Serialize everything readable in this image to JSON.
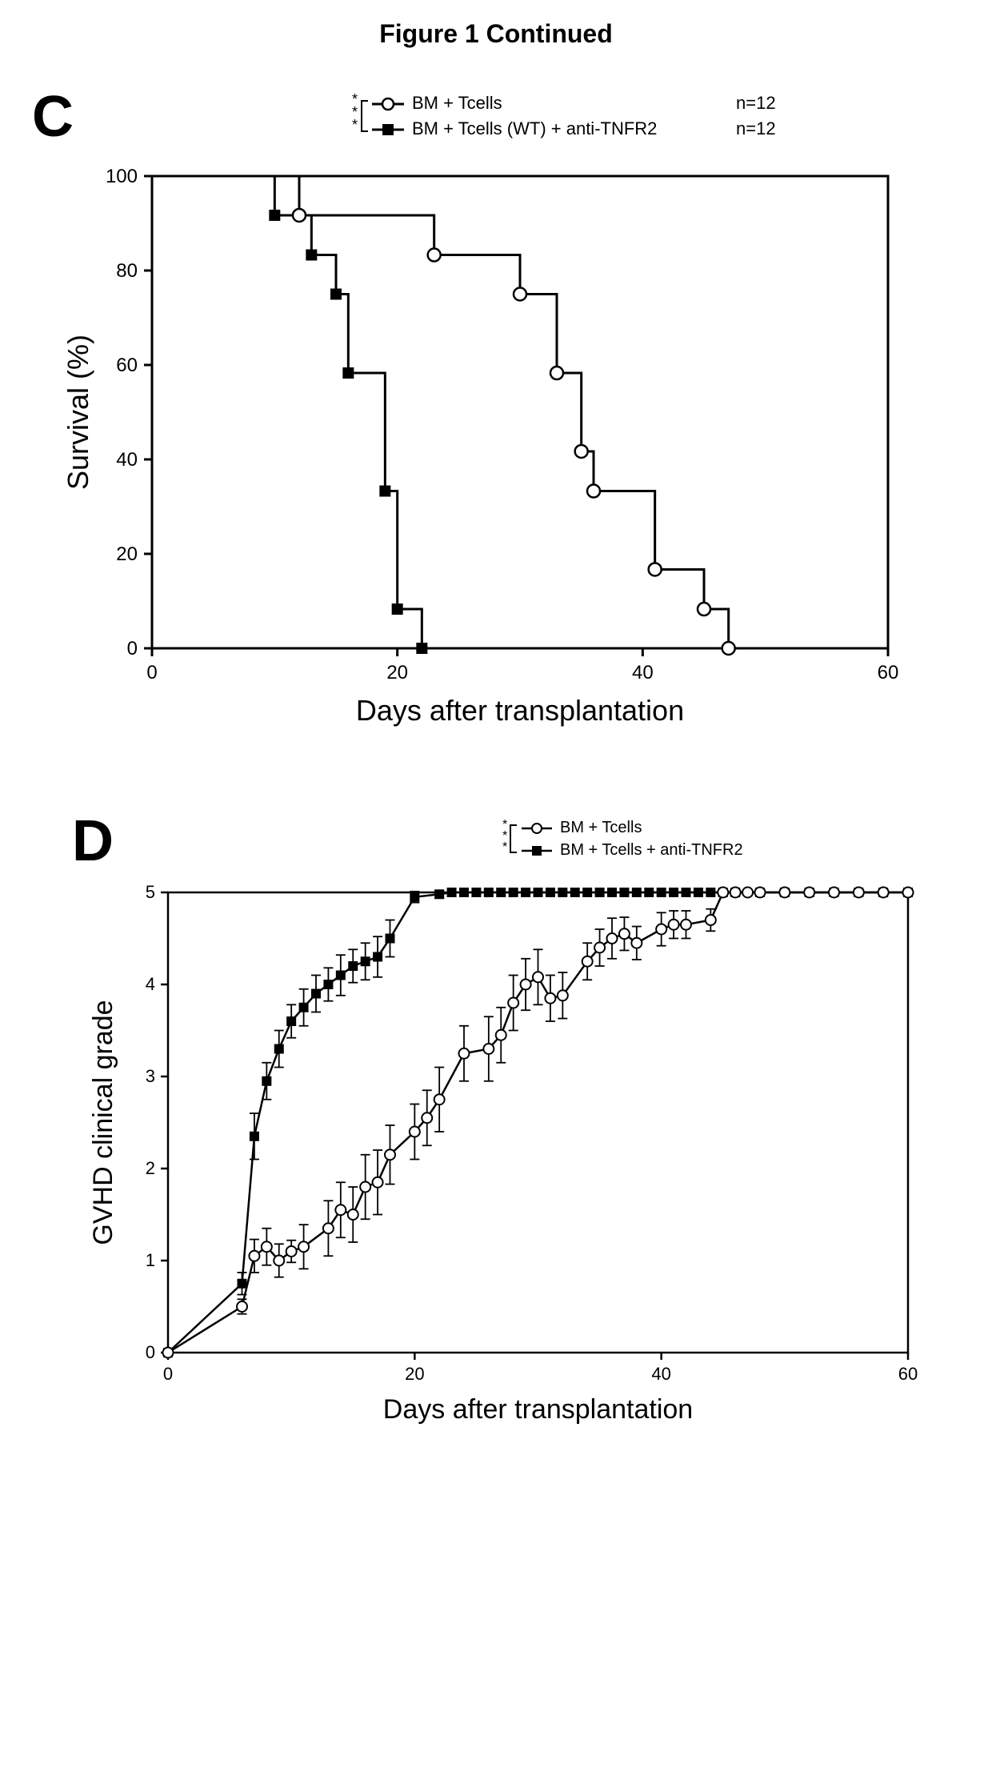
{
  "figure_title": "Figure 1 Continued",
  "panels": {
    "C": {
      "label": "C",
      "significance": "***",
      "legend": {
        "series1": {
          "label": "BM + Tcells",
          "n": "n=12",
          "marker": "open-circle"
        },
        "series2": {
          "label": "BM + Tcells (WT) + anti-TNFR2",
          "n": "n=12",
          "marker": "filled-square"
        }
      },
      "chart": {
        "type": "kaplan-meier-step",
        "background_color": "#ffffff",
        "axis_color": "#000000",
        "line_color": "#000000",
        "line_width": 3,
        "marker_size": 7,
        "xlabel": "Days after transplantation",
        "ylabel": "Survival (%)",
        "label_fontsize": 36,
        "tick_fontsize": 24,
        "xlim": [
          0,
          60
        ],
        "ylim": [
          0,
          100
        ],
        "xticks": [
          0,
          20,
          40,
          60
        ],
        "yticks": [
          0,
          20,
          40,
          60,
          80,
          100
        ],
        "series1_points": [
          {
            "x": 0,
            "y": 100
          },
          {
            "x": 12,
            "y": 100
          },
          {
            "x": 12,
            "y": 91.7
          },
          {
            "x": 23,
            "y": 91.7
          },
          {
            "x": 23,
            "y": 83.3
          },
          {
            "x": 30,
            "y": 83.3
          },
          {
            "x": 30,
            "y": 75
          },
          {
            "x": 33,
            "y": 75
          },
          {
            "x": 33,
            "y": 58.3
          },
          {
            "x": 35,
            "y": 58.3
          },
          {
            "x": 35,
            "y": 41.7
          },
          {
            "x": 36,
            "y": 41.7
          },
          {
            "x": 36,
            "y": 33.3
          },
          {
            "x": 41,
            "y": 33.3
          },
          {
            "x": 41,
            "y": 16.7
          },
          {
            "x": 45,
            "y": 16.7
          },
          {
            "x": 45,
            "y": 8.3
          },
          {
            "x": 47,
            "y": 8.3
          },
          {
            "x": 47,
            "y": 0
          }
        ],
        "series1_markers": [
          {
            "x": 12,
            "y": 91.7
          },
          {
            "x": 23,
            "y": 83.3
          },
          {
            "x": 30,
            "y": 75
          },
          {
            "x": 33,
            "y": 58.3
          },
          {
            "x": 35,
            "y": 41.7
          },
          {
            "x": 36,
            "y": 33.3
          },
          {
            "x": 41,
            "y": 16.7
          },
          {
            "x": 45,
            "y": 8.3
          },
          {
            "x": 47,
            "y": 0
          }
        ],
        "series2_points": [
          {
            "x": 0,
            "y": 100
          },
          {
            "x": 10,
            "y": 100
          },
          {
            "x": 10,
            "y": 91.7
          },
          {
            "x": 13,
            "y": 91.7
          },
          {
            "x": 13,
            "y": 83.3
          },
          {
            "x": 15,
            "y": 83.3
          },
          {
            "x": 15,
            "y": 75
          },
          {
            "x": 16,
            "y": 75
          },
          {
            "x": 16,
            "y": 58.3
          },
          {
            "x": 19,
            "y": 58.3
          },
          {
            "x": 19,
            "y": 33.3
          },
          {
            "x": 20,
            "y": 33.3
          },
          {
            "x": 20,
            "y": 8.3
          },
          {
            "x": 22,
            "y": 8.3
          },
          {
            "x": 22,
            "y": 0
          }
        ],
        "series2_markers": [
          {
            "x": 10,
            "y": 91.7
          },
          {
            "x": 13,
            "y": 83.3
          },
          {
            "x": 15,
            "y": 75
          },
          {
            "x": 16,
            "y": 58.3
          },
          {
            "x": 19,
            "y": 33.3
          },
          {
            "x": 20,
            "y": 8.3
          },
          {
            "x": 22,
            "y": 0
          }
        ]
      }
    },
    "D": {
      "label": "D",
      "significance": "***",
      "legend": {
        "series1": {
          "label": "BM + Tcells",
          "marker": "open-circle"
        },
        "series2": {
          "label": "BM + Tcells + anti-TNFR2",
          "marker": "filled-square"
        }
      },
      "chart": {
        "type": "line-with-errorbars",
        "background_color": "#ffffff",
        "axis_color": "#000000",
        "line_color": "#000000",
        "line_width": 2.5,
        "marker_size": 6,
        "errorbar_cap": 6,
        "xlabel": "Days after transplantation",
        "ylabel": "GVHD clinical grade",
        "label_fontsize": 34,
        "tick_fontsize": 22,
        "xlim": [
          0,
          60
        ],
        "ylim": [
          0,
          5
        ],
        "xticks": [
          0,
          20,
          40,
          60
        ],
        "yticks": [
          0,
          1,
          2,
          3,
          4,
          5
        ],
        "series1_points": [
          {
            "x": 0,
            "y": 0,
            "err": 0
          },
          {
            "x": 6,
            "y": 0.5,
            "err": 0.08
          },
          {
            "x": 7,
            "y": 1.05,
            "err": 0.18
          },
          {
            "x": 8,
            "y": 1.15,
            "err": 0.2
          },
          {
            "x": 9,
            "y": 1.0,
            "err": 0.18
          },
          {
            "x": 10,
            "y": 1.1,
            "err": 0.12
          },
          {
            "x": 11,
            "y": 1.15,
            "err": 0.24
          },
          {
            "x": 13,
            "y": 1.35,
            "err": 0.3
          },
          {
            "x": 14,
            "y": 1.55,
            "err": 0.3
          },
          {
            "x": 15,
            "y": 1.5,
            "err": 0.3
          },
          {
            "x": 16,
            "y": 1.8,
            "err": 0.35
          },
          {
            "x": 17,
            "y": 1.85,
            "err": 0.35
          },
          {
            "x": 18,
            "y": 2.15,
            "err": 0.32
          },
          {
            "x": 20,
            "y": 2.4,
            "err": 0.3
          },
          {
            "x": 21,
            "y": 2.55,
            "err": 0.3
          },
          {
            "x": 22,
            "y": 2.75,
            "err": 0.35
          },
          {
            "x": 24,
            "y": 3.25,
            "err": 0.3
          },
          {
            "x": 26,
            "y": 3.3,
            "err": 0.35
          },
          {
            "x": 27,
            "y": 3.45,
            "err": 0.3
          },
          {
            "x": 28,
            "y": 3.8,
            "err": 0.3
          },
          {
            "x": 29,
            "y": 4.0,
            "err": 0.28
          },
          {
            "x": 30,
            "y": 4.08,
            "err": 0.3
          },
          {
            "x": 31,
            "y": 3.85,
            "err": 0.25
          },
          {
            "x": 32,
            "y": 3.88,
            "err": 0.25
          },
          {
            "x": 34,
            "y": 4.25,
            "err": 0.2
          },
          {
            "x": 35,
            "y": 4.4,
            "err": 0.2
          },
          {
            "x": 36,
            "y": 4.5,
            "err": 0.22
          },
          {
            "x": 37,
            "y": 4.55,
            "err": 0.18
          },
          {
            "x": 38,
            "y": 4.45,
            "err": 0.18
          },
          {
            "x": 40,
            "y": 4.6,
            "err": 0.18
          },
          {
            "x": 41,
            "y": 4.65,
            "err": 0.15
          },
          {
            "x": 42,
            "y": 4.65,
            "err": 0.15
          },
          {
            "x": 44,
            "y": 4.7,
            "err": 0.12
          },
          {
            "x": 45,
            "y": 5,
            "err": 0
          },
          {
            "x": 46,
            "y": 5,
            "err": 0
          },
          {
            "x": 47,
            "y": 5,
            "err": 0
          },
          {
            "x": 48,
            "y": 5,
            "err": 0
          },
          {
            "x": 50,
            "y": 5,
            "err": 0
          },
          {
            "x": 52,
            "y": 5,
            "err": 0
          },
          {
            "x": 54,
            "y": 5,
            "err": 0
          },
          {
            "x": 56,
            "y": 5,
            "err": 0
          },
          {
            "x": 58,
            "y": 5,
            "err": 0
          },
          {
            "x": 60,
            "y": 5,
            "err": 0
          }
        ],
        "series2_points": [
          {
            "x": 0,
            "y": 0,
            "err": 0
          },
          {
            "x": 6,
            "y": 0.75,
            "err": 0.12
          },
          {
            "x": 7,
            "y": 2.35,
            "err": 0.25
          },
          {
            "x": 8,
            "y": 2.95,
            "err": 0.2
          },
          {
            "x": 9,
            "y": 3.3,
            "err": 0.2
          },
          {
            "x": 10,
            "y": 3.6,
            "err": 0.18
          },
          {
            "x": 11,
            "y": 3.75,
            "err": 0.2
          },
          {
            "x": 12,
            "y": 3.9,
            "err": 0.2
          },
          {
            "x": 13,
            "y": 4.0,
            "err": 0.18
          },
          {
            "x": 14,
            "y": 4.1,
            "err": 0.22
          },
          {
            "x": 15,
            "y": 4.2,
            "err": 0.18
          },
          {
            "x": 16,
            "y": 4.25,
            "err": 0.2
          },
          {
            "x": 17,
            "y": 4.3,
            "err": 0.22
          },
          {
            "x": 18,
            "y": 4.5,
            "err": 0.2
          },
          {
            "x": 20,
            "y": 4.95,
            "err": 0.06
          },
          {
            "x": 22,
            "y": 4.98,
            "err": 0.04
          },
          {
            "x": 23,
            "y": 5,
            "err": 0
          },
          {
            "x": 24,
            "y": 5,
            "err": 0
          },
          {
            "x": 25,
            "y": 5,
            "err": 0
          },
          {
            "x": 26,
            "y": 5,
            "err": 0
          },
          {
            "x": 27,
            "y": 5,
            "err": 0
          },
          {
            "x": 28,
            "y": 5,
            "err": 0
          },
          {
            "x": 29,
            "y": 5,
            "err": 0
          },
          {
            "x": 30,
            "y": 5,
            "err": 0
          },
          {
            "x": 31,
            "y": 5,
            "err": 0
          },
          {
            "x": 32,
            "y": 5,
            "err": 0
          },
          {
            "x": 33,
            "y": 5,
            "err": 0
          },
          {
            "x": 34,
            "y": 5,
            "err": 0
          },
          {
            "x": 35,
            "y": 5,
            "err": 0
          },
          {
            "x": 36,
            "y": 5,
            "err": 0
          },
          {
            "x": 37,
            "y": 5,
            "err": 0
          },
          {
            "x": 38,
            "y": 5,
            "err": 0
          },
          {
            "x": 39,
            "y": 5,
            "err": 0
          },
          {
            "x": 40,
            "y": 5,
            "err": 0
          },
          {
            "x": 41,
            "y": 5,
            "err": 0
          },
          {
            "x": 42,
            "y": 5,
            "err": 0
          },
          {
            "x": 43,
            "y": 5,
            "err": 0
          },
          {
            "x": 44,
            "y": 5,
            "err": 0
          },
          {
            "x": 45,
            "y": 5,
            "err": 0
          },
          {
            "x": 46,
            "y": 5,
            "err": 0
          },
          {
            "x": 48,
            "y": 5,
            "err": 0
          },
          {
            "x": 50,
            "y": 5,
            "err": 0
          },
          {
            "x": 52,
            "y": 5,
            "err": 0
          },
          {
            "x": 54,
            "y": 5,
            "err": 0
          },
          {
            "x": 56,
            "y": 5,
            "err": 0
          },
          {
            "x": 58,
            "y": 5,
            "err": 0
          },
          {
            "x": 60,
            "y": 5,
            "err": 0
          }
        ]
      }
    }
  }
}
